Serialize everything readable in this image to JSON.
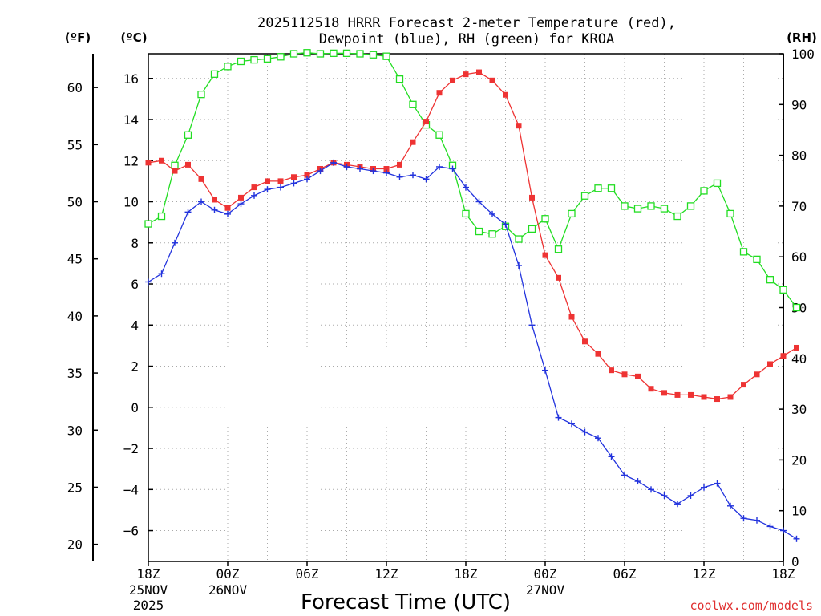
{
  "chart_data": {
    "type": "line",
    "title_line1": "2025112518 HRRR Forecast 2-meter Temperature (red),",
    "title_line2": "Dewpoint (blue), RH (green) for KROA",
    "xlabel": "Forecast Time (UTC)",
    "credit": "coolwx.com/models",
    "axis_units": {
      "fahrenheit": "(ºF)",
      "celsius": "(ºC)",
      "rh": "(RH)"
    },
    "x_ticks": [
      {
        "hour": 0,
        "label": "18Z",
        "sub1": "25NOV",
        "sub2": "2025"
      },
      {
        "hour": 6,
        "label": "00Z",
        "sub1": "26NOV",
        "sub2": ""
      },
      {
        "hour": 12,
        "label": "06Z",
        "sub1": "",
        "sub2": ""
      },
      {
        "hour": 18,
        "label": "12Z",
        "sub1": "",
        "sub2": ""
      },
      {
        "hour": 24,
        "label": "18Z",
        "sub1": "",
        "sub2": ""
      },
      {
        "hour": 30,
        "label": "00Z",
        "sub1": "27NOV",
        "sub2": ""
      },
      {
        "hour": 36,
        "label": "06Z",
        "sub1": "",
        "sub2": ""
      },
      {
        "hour": 42,
        "label": "12Z",
        "sub1": "",
        "sub2": ""
      },
      {
        "hour": 48,
        "label": "18Z",
        "sub1": "",
        "sub2": ""
      }
    ],
    "xlim": [
      0,
      48
    ],
    "ylim_c": [
      -7.5,
      17.2
    ],
    "ylim_rh": [
      0,
      100
    ],
    "c_ticks": [
      "-6",
      "-4",
      "-2",
      "0",
      "2",
      "4",
      "6",
      "8",
      "10",
      "12",
      "14",
      "16"
    ],
    "f_ticks": [
      "20",
      "25",
      "30",
      "35",
      "40",
      "45",
      "50",
      "55",
      "60"
    ],
    "rh_ticks": [
      "0",
      "10",
      "20",
      "30",
      "40",
      "50",
      "60",
      "70",
      "80",
      "90",
      "100"
    ],
    "series": [
      {
        "name": "Temperature",
        "color": "#ee3333",
        "marker": "filled-square",
        "values": [
          11.9,
          12.0,
          11.5,
          11.8,
          11.1,
          10.1,
          9.7,
          10.2,
          10.7,
          11.0,
          11.0,
          11.2,
          11.3,
          11.6,
          11.9,
          11.8,
          11.7,
          11.6,
          11.6,
          11.8,
          12.9,
          13.9,
          15.3,
          15.9,
          16.2,
          16.3,
          15.9,
          15.2,
          13.7,
          10.2,
          7.4,
          6.3,
          4.4,
          3.2,
          2.6,
          1.8,
          1.6,
          1.5,
          0.9,
          0.7,
          0.6,
          0.6,
          0.5,
          0.4,
          0.5,
          1.1,
          1.6,
          2.1,
          2.5,
          2.9
        ]
      },
      {
        "name": "Dewpoint",
        "color": "#2233dd",
        "marker": "plus",
        "values": [
          6.1,
          6.5,
          8.0,
          9.5,
          10.0,
          9.6,
          9.4,
          9.9,
          10.3,
          10.6,
          10.7,
          10.9,
          11.1,
          11.5,
          11.9,
          11.7,
          11.6,
          11.5,
          11.4,
          11.2,
          11.3,
          11.1,
          11.7,
          11.6,
          10.7,
          10.0,
          9.4,
          8.9,
          6.9,
          4.0,
          1.8,
          -0.5,
          -0.8,
          -1.2,
          -1.5,
          -2.4,
          -3.3,
          -3.6,
          -4.0,
          -4.3,
          -4.7,
          -4.3,
          -3.9,
          -3.7,
          -4.8,
          -5.4,
          -5.5,
          -5.8,
          -6.0,
          -6.4
        ]
      },
      {
        "name": "RH",
        "color": "#22dd22",
        "marker": "open-square",
        "values": [
          66.5,
          68.0,
          78.0,
          84.0,
          92.0,
          96.0,
          97.5,
          98.5,
          98.8,
          99.0,
          99.4,
          100.0,
          100.2,
          100.0,
          100.1,
          100.1,
          100.0,
          99.8,
          99.5,
          95.0,
          90.0,
          86.0,
          84.0,
          78.0,
          68.5,
          65.0,
          64.5,
          66.0,
          63.5,
          65.5,
          67.5,
          61.5,
          68.5,
          72.0,
          73.5,
          73.5,
          70.0,
          69.5,
          70.0,
          69.5,
          68.0,
          70.0,
          73.0,
          74.5,
          68.5,
          61.0,
          59.5,
          55.5,
          53.5,
          50.0
        ]
      }
    ]
  }
}
